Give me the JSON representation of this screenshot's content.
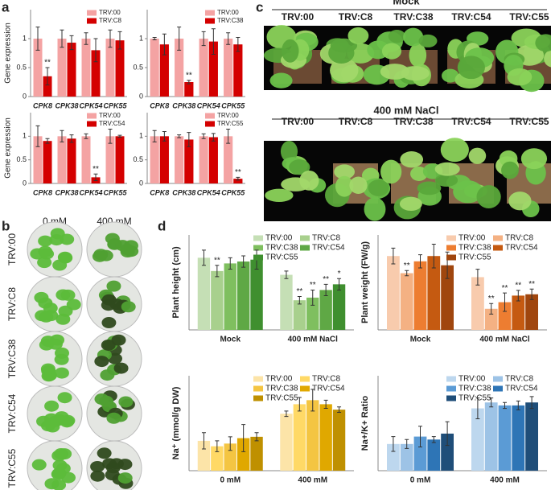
{
  "panel_labels": [
    "a",
    "b",
    "c",
    "d"
  ],
  "photo_b": {
    "columns": [
      "0 mM",
      "400 mM"
    ],
    "rows": [
      "TRV:00",
      "TRV:C8",
      "TRV:C38",
      "TRV:C54",
      "TRV:C55"
    ]
  },
  "photo_c": {
    "groups": [
      {
        "title": "Mock",
        "labels": [
          "TRV:00",
          "TRV:C8",
          "TRV:C38",
          "TRV:C54",
          "TRV:C55"
        ]
      },
      {
        "title": "400 mM NaCl",
        "labels": [
          "TRV:00",
          "TRV:C8",
          "TRV:C38",
          "TRV:C54",
          "TRV:C55"
        ]
      }
    ]
  },
  "chart_data": [
    {
      "type": "bar",
      "ylabel": "Gene expression",
      "categories": [
        "CPK8",
        "CPK38",
        "CPK54",
        "CPK55"
      ],
      "ylim": [
        0,
        1.5
      ],
      "yticks": [
        0,
        0.5,
        1
      ],
      "series": [
        {
          "name": "TRV:00",
          "color": "#f4a3a3",
          "values": [
            1,
            1,
            1,
            1
          ],
          "errors": [
            0.2,
            0.15,
            0.1,
            0.15
          ]
        },
        {
          "name": "TRV:C8",
          "color": "#d40000",
          "values": [
            0.35,
            0.93,
            0.8,
            0.97
          ],
          "errors": [
            0.15,
            0.12,
            0.2,
            0.15
          ],
          "sig": [
            "**",
            null,
            null,
            null
          ]
        }
      ]
    },
    {
      "type": "bar",
      "categories": [
        "CPK8",
        "CPK38",
        "CPK54",
        "CPK55"
      ],
      "ylim": [
        0,
        1.5
      ],
      "yticks": [
        0,
        0.5,
        1
      ],
      "series": [
        {
          "name": "TRV:00",
          "color": "#f4a3a3",
          "values": [
            1,
            1,
            1,
            1
          ],
          "errors": [
            0.02,
            0.2,
            0.12,
            0.1
          ]
        },
        {
          "name": "TRV:C38",
          "color": "#d40000",
          "values": [
            0.9,
            0.25,
            0.95,
            0.9
          ],
          "errors": [
            0.18,
            0.03,
            0.22,
            0.12
          ],
          "sig": [
            null,
            "**",
            null,
            null
          ]
        }
      ]
    },
    {
      "type": "bar",
      "ylabel": "Gene expression",
      "categories": [
        "CPK8",
        "CPK38",
        "CPK54",
        "CPK55"
      ],
      "ylim": [
        0,
        1.5
      ],
      "yticks": [
        0,
        0.5,
        1
      ],
      "series": [
        {
          "name": "TRV:00",
          "color": "#f4a3a3",
          "values": [
            1,
            1,
            1,
            1
          ],
          "errors": [
            0.22,
            0.12,
            0.05,
            0.15
          ]
        },
        {
          "name": "TRV:C54",
          "color": "#d40000",
          "values": [
            0.9,
            0.95,
            0.13,
            1.0
          ],
          "errors": [
            0.05,
            0.08,
            0.07,
            0.02
          ],
          "sig": [
            null,
            null,
            "**",
            null
          ]
        }
      ]
    },
    {
      "type": "bar",
      "categories": [
        "CPK8",
        "CPK38",
        "CPK54",
        "CPK55"
      ],
      "ylim": [
        0,
        1.5
      ],
      "yticks": [
        0,
        0.5,
        1
      ],
      "series": [
        {
          "name": "TRV:00",
          "color": "#f4a3a3",
          "values": [
            1,
            1,
            1,
            1
          ],
          "errors": [
            0.12,
            0.03,
            0.05,
            0.15
          ]
        },
        {
          "name": "TRV:C55",
          "color": "#d40000",
          "values": [
            1.0,
            0.93,
            0.98,
            0.1
          ],
          "errors": [
            0.1,
            0.15,
            0.08,
            0.03
          ],
          "sig": [
            null,
            null,
            null,
            "**"
          ]
        }
      ]
    },
    {
      "type": "bar",
      "ylabel": "Plant height (cm)",
      "categories": [
        "Mock",
        "400 mM NaCl"
      ],
      "ylim": [
        0,
        25
      ],
      "series": [
        {
          "name": "TRV:00",
          "color": "#c5dfb5",
          "values": [
            19,
            14.5
          ],
          "errors": [
            2,
            1
          ]
        },
        {
          "name": "TRV:C8",
          "color": "#a8d08d",
          "values": [
            15.5,
            7.8
          ],
          "errors": [
            1.5,
            1
          ],
          "sig": [
            "**",
            "**"
          ]
        },
        {
          "name": "TRV:C38",
          "color": "#7fbf5f",
          "values": [
            17.5,
            8.5
          ],
          "errors": [
            1.5,
            2
          ],
          "sig": [
            null,
            "**"
          ]
        },
        {
          "name": "TRV:C54",
          "color": "#5fa845",
          "values": [
            18,
            10.5
          ],
          "errors": [
            1.5,
            1.5
          ],
          "sig": [
            null,
            "**"
          ]
        },
        {
          "name": "TRV:C55",
          "color": "#3f8f2f",
          "values": [
            18.5,
            12
          ],
          "errors": [
            2.5,
            1.5
          ],
          "sig": [
            null,
            "*"
          ]
        }
      ]
    },
    {
      "type": "bar",
      "ylabel": "Plant weight (FW/g)",
      "categories": [
        "Mock",
        "400 mM NaCl"
      ],
      "ylim": [
        0,
        3.6
      ],
      "series": [
        {
          "name": "TRV:00",
          "color": "#f8cbad",
          "values": [
            2.8,
            2.0
          ],
          "errors": [
            0.3,
            0.3
          ]
        },
        {
          "name": "TRV:C8",
          "color": "#f4b183",
          "values": [
            2.15,
            0.8
          ],
          "errors": [
            0.1,
            0.2
          ],
          "sig": [
            "**",
            "**"
          ]
        },
        {
          "name": "TRV:C38",
          "color": "#ed7d31",
          "values": [
            2.6,
            1.05
          ],
          "errors": [
            0.25,
            0.35
          ],
          "sig": [
            null,
            "**"
          ]
        },
        {
          "name": "TRV:C54",
          "color": "#c55a11",
          "values": [
            2.8,
            1.3
          ],
          "errors": [
            0.45,
            0.2
          ],
          "sig": [
            null,
            "**"
          ]
        },
        {
          "name": "TRV:C55",
          "color": "#a0460e",
          "values": [
            2.45,
            1.35
          ],
          "errors": [
            0.5,
            0.2
          ],
          "sig": [
            null,
            "**"
          ]
        }
      ]
    },
    {
      "type": "bar",
      "ylabel": "Na⁺ (mmol/g DW)",
      "categories": [
        "0 mM",
        "400 mM"
      ],
      "ylim": [
        0,
        3.5
      ],
      "series": [
        {
          "name": "TRV:00",
          "color": "#fce4a8",
          "values": [
            1.1,
            2.1
          ],
          "errors": [
            0.3,
            0.1
          ]
        },
        {
          "name": "TRV:C8",
          "color": "#ffd966",
          "values": [
            0.9,
            2.45
          ],
          "errors": [
            0.2,
            0.25
          ]
        },
        {
          "name": "TRV:C38",
          "color": "#f4c542",
          "values": [
            1.0,
            2.6
          ],
          "errors": [
            0.25,
            0.4
          ]
        },
        {
          "name": "TRV:C54",
          "color": "#e0a800",
          "values": [
            1.2,
            2.45
          ],
          "errors": [
            0.5,
            0.15
          ]
        },
        {
          "name": "TRV:C55",
          "color": "#bf9000",
          "values": [
            1.25,
            2.25
          ],
          "errors": [
            0.15,
            0.1
          ]
        }
      ]
    },
    {
      "type": "bar",
      "ylabel": "Na+/K+ Ratio",
      "categories": [
        "0 mM",
        "400 mM"
      ],
      "ylim": [
        0,
        3.2
      ],
      "series": [
        {
          "name": "TRV:00",
          "color": "#bdd7ee",
          "values": [
            0.9,
            2.1
          ],
          "errors": [
            0.25,
            0.35
          ]
        },
        {
          "name": "TRV:C8",
          "color": "#9dc3e6",
          "values": [
            0.9,
            2.3
          ],
          "errors": [
            0.15,
            0.15
          ]
        },
        {
          "name": "TRV:C38",
          "color": "#5b9bd5",
          "values": [
            1.15,
            2.2
          ],
          "errors": [
            0.35,
            0.1
          ]
        },
        {
          "name": "TRV:C54",
          "color": "#2e75b6",
          "values": [
            1.05,
            2.2
          ],
          "errors": [
            0.1,
            0.15
          ]
        },
        {
          "name": "TRV:C55",
          "color": "#1f4e79",
          "values": [
            1.25,
            2.3
          ],
          "errors": [
            0.4,
            0.2
          ]
        }
      ]
    }
  ]
}
